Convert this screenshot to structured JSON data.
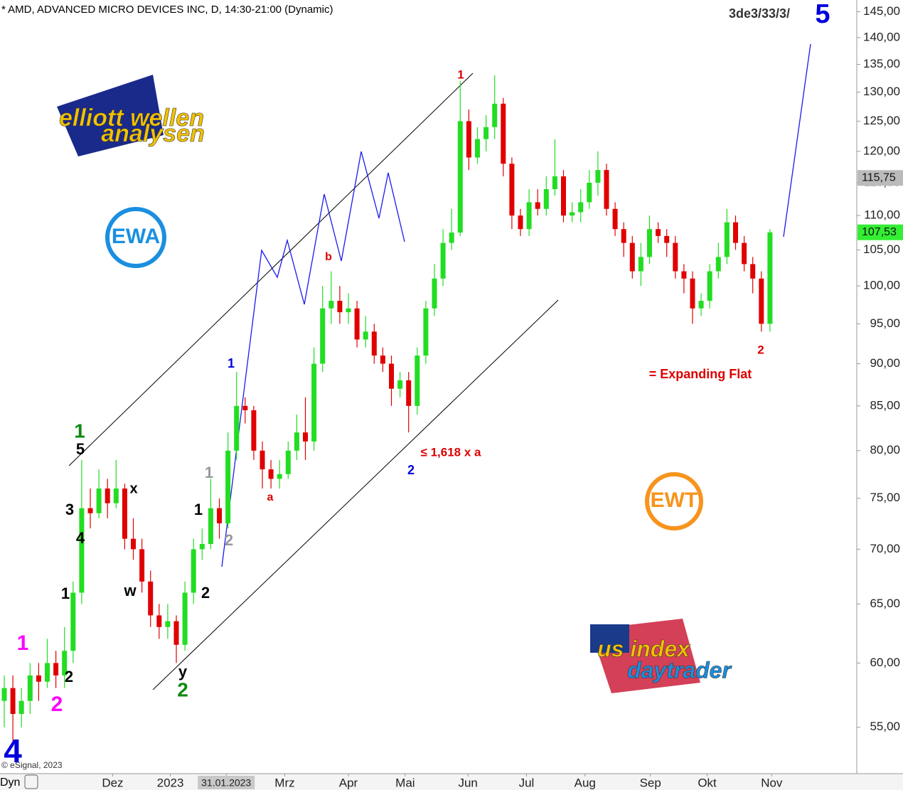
{
  "chart_data": {
    "type": "candlestick",
    "title": "* AMD, ADVANCED MICRO DEVICES INC, D, 14:30-21:00 (Dynamic)",
    "log_scale": true,
    "up_color": "#22dd22",
    "down_color": "#e00000",
    "categories": [
      null,
      null,
      null,
      null,
      null,
      null,
      null,
      null,
      null,
      null,
      null,
      null,
      null,
      null,
      null,
      null,
      null,
      null,
      null,
      null,
      null,
      null,
      null,
      null,
      null,
      null,
      null,
      null,
      null,
      null,
      null,
      null,
      null,
      null,
      null,
      null,
      null,
      null,
      null,
      null,
      null,
      null,
      null,
      null,
      null,
      null,
      null,
      null,
      null,
      null,
      null,
      null,
      null,
      null,
      null,
      null,
      null,
      null,
      null,
      null,
      null,
      null,
      null,
      null,
      null,
      null,
      null,
      null,
      null,
      null,
      null,
      null,
      null,
      null,
      null,
      null,
      null,
      null,
      null,
      null,
      null,
      null,
      null,
      null,
      null,
      null,
      null,
      null,
      null,
      null
    ],
    "open": [
      57,
      58,
      56,
      57,
      59,
      58.5,
      60,
      59,
      61,
      66,
      74,
      73.5,
      76,
      74.5,
      76,
      71,
      70,
      67,
      64,
      63,
      63.5,
      61.5,
      66,
      70,
      70.5,
      74,
      72.5,
      80,
      85,
      84.5,
      80,
      78,
      77,
      77.5,
      80,
      82,
      81,
      90,
      97,
      98,
      96.5,
      97,
      93,
      94,
      91,
      90,
      87,
      88,
      85,
      91,
      97,
      101,
      106,
      107.5,
      125,
      119,
      122,
      124,
      128,
      118,
      110,
      108,
      112,
      111,
      114,
      116,
      110,
      110.5,
      112,
      115,
      117,
      111,
      108,
      106,
      102,
      104,
      108,
      107,
      106,
      102,
      101,
      97,
      98,
      102,
      104,
      109,
      106,
      103,
      101,
      95
    ],
    "high": [
      59,
      59,
      58,
      60,
      60,
      62,
      61,
      63,
      67,
      79,
      76,
      78,
      77,
      79,
      76.5,
      73,
      71,
      68,
      65,
      65,
      64,
      67,
      71,
      72,
      77,
      75,
      82,
      89,
      86,
      85,
      81,
      79,
      79,
      81,
      84,
      86,
      92,
      100,
      102,
      100,
      99,
      98,
      96,
      95,
      92,
      91,
      89,
      89,
      92,
      98,
      103,
      108,
      111,
      132,
      127,
      124,
      126,
      133,
      129,
      119,
      111,
      114,
      114,
      116,
      122,
      117,
      112,
      114,
      117,
      120,
      118,
      112,
      109,
      107,
      106,
      110,
      109,
      108,
      107,
      103,
      102,
      99,
      103,
      106,
      111,
      110,
      107,
      104,
      102,
      108
    ],
    "low": [
      55,
      54,
      55,
      56,
      57,
      58,
      58,
      58,
      60,
      65,
      72,
      73,
      73,
      74,
      70,
      69,
      66,
      63,
      62,
      62,
      60,
      61,
      65,
      69,
      70,
      71,
      72,
      79,
      83,
      79,
      76,
      76,
      76,
      77,
      79,
      79,
      80,
      89,
      95,
      95,
      95,
      92,
      92,
      90,
      89,
      85,
      86,
      82,
      84,
      90,
      96,
      100,
      105,
      107,
      117,
      118,
      120,
      122,
      116,
      108,
      107,
      107,
      110,
      110,
      113,
      109,
      109,
      109,
      111,
      113,
      110,
      107,
      104,
      101,
      100,
      103,
      106,
      104,
      101,
      99,
      95,
      96,
      97,
      101,
      103,
      105,
      102,
      99,
      94,
      94
    ],
    "close": [
      58,
      56,
      57,
      59,
      58.5,
      60,
      59,
      61,
      66,
      74,
      73.5,
      76,
      74.5,
      76,
      71,
      70,
      67,
      64,
      63,
      63.5,
      61.5,
      66,
      70,
      70.5,
      74,
      72.5,
      80,
      85,
      84.5,
      80,
      78,
      77,
      77.5,
      80,
      82,
      81,
      90,
      97,
      98,
      96.5,
      97,
      93,
      94,
      91,
      90,
      87,
      88,
      85,
      91,
      97,
      101,
      106,
      107.5,
      125,
      119,
      122,
      124,
      128,
      118,
      110,
      108,
      112,
      111,
      114,
      116,
      110,
      110.5,
      112,
      115,
      117,
      111,
      108,
      106,
      102,
      104,
      108,
      107,
      106,
      102,
      101,
      97,
      98,
      102,
      104,
      109,
      106,
      103,
      101,
      95,
      107.53
    ],
    "xticks": [
      {
        "value": 12.6,
        "label": "Dez"
      },
      {
        "value": 19.3,
        "label": "2023"
      },
      {
        "value": 25.8,
        "label": "31.01.2023"
      },
      {
        "value": 32.6,
        "label": "Mrz"
      },
      {
        "value": 40,
        "label": "Apr"
      },
      {
        "value": 46.6,
        "label": "Mai"
      },
      {
        "value": 53.9,
        "label": "Jun"
      },
      {
        "value": 60.7,
        "label": "Jul"
      },
      {
        "value": 67.5,
        "label": "Aug"
      },
      {
        "value": 75.1,
        "label": "Sep"
      },
      {
        "value": 81.7,
        "label": "Okt"
      },
      {
        "value": 89.2,
        "label": "Nov"
      }
    ],
    "ylim": [
      51.7,
      147.3
    ],
    "yticks": [
      {
        "value": 55,
        "label": "55,00"
      },
      {
        "value": 60,
        "label": "60,00"
      },
      {
        "value": 65,
        "label": "65,00"
      },
      {
        "value": 70,
        "label": "70,00"
      },
      {
        "value": 75,
        "label": "75,00"
      },
      {
        "value": 80,
        "label": "80,00"
      },
      {
        "value": 85,
        "label": "85,00"
      },
      {
        "value": 90,
        "label": "90,00"
      },
      {
        "value": 95,
        "label": "95,00"
      },
      {
        "value": 100,
        "label": "100,00"
      },
      {
        "value": 105,
        "label": "105,00"
      },
      {
        "value": 110,
        "label": "110,00"
      },
      {
        "value": 115,
        "label": "115,00"
      },
      {
        "value": 120,
        "label": "120,00"
      },
      {
        "value": 125,
        "label": "125,00"
      },
      {
        "value": 130,
        "label": "130,00"
      },
      {
        "value": 135,
        "label": "135,00"
      },
      {
        "value": 140,
        "label": "140,00"
      },
      {
        "value": 145,
        "label": "145,00"
      }
    ],
    "price_markers": [
      {
        "value": 115.75,
        "label": "115,75",
        "color": "#bbbbbb"
      },
      {
        "value": 107.53,
        "label": "107,53",
        "color": "#33ee33"
      }
    ],
    "annotations": [
      {
        "text": "1",
        "color": "#118811"
      },
      {
        "text": "5",
        "color": "#000000"
      },
      {
        "text": "x",
        "color": "#000000"
      },
      {
        "text": "3",
        "color": "#000000"
      },
      {
        "text": "4",
        "color": "#000000"
      },
      {
        "text": "1",
        "color": "#000000"
      },
      {
        "text": "w",
        "color": "#000000"
      },
      {
        "text": "2",
        "color": "#000000"
      },
      {
        "text": "1",
        "color": "#000000"
      },
      {
        "text": "1",
        "color": "#999999"
      },
      {
        "text": "2",
        "color": "#999999"
      },
      {
        "text": "1",
        "color": "#0000dd"
      },
      {
        "text": "b",
        "color": "#dd0000"
      },
      {
        "text": "a",
        "color": "#dd0000"
      },
      {
        "text": "1",
        "color": "#dd0000"
      },
      {
        "text": "2",
        "color": "#0000dd"
      },
      {
        "text": "≤ 1,618 x a",
        "color": "#dd0000"
      },
      {
        "text": "2",
        "color": "#dd0000"
      },
      {
        "text": "= Expanding Flat",
        "color": "#dd0000"
      },
      {
        "text": "y",
        "color": "#000000"
      },
      {
        "text": "2",
        "color": "#118811"
      },
      {
        "text": "1",
        "color": "#ff00ff"
      },
      {
        "text": "2",
        "color": "#ff00ff"
      },
      {
        "text": "2",
        "color": "#000000"
      },
      {
        "text": "4",
        "color": "#0000dd"
      },
      {
        "text": "3de3/33/3/",
        "color": "#333333"
      },
      {
        "text": "5",
        "color": "#0000dd"
      }
    ],
    "logos": [
      "elliott wellen",
      "analysen",
      "EWA",
      "EWT",
      "us index",
      "daytrader"
    ],
    "copyright": "© eSignal, 2023",
    "mode_label": "Dyn"
  }
}
